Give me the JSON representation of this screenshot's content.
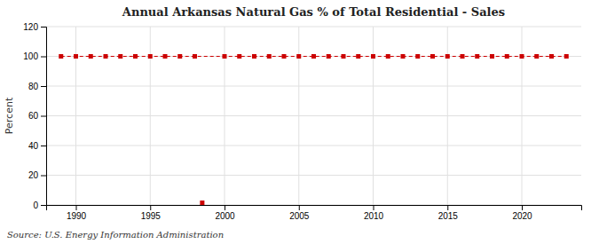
{
  "chart_data": {
    "type": "line",
    "title": "Annual Arkansas Natural Gas % of Total Residential - Sales",
    "ylabel": "Percent",
    "source": "Source: U.S. Energy Information Administration",
    "xlim": [
      1988,
      2024
    ],
    "xticks": [
      1990,
      1995,
      2000,
      2005,
      2010,
      2015,
      2020
    ],
    "ylim": [
      0,
      120
    ],
    "yticks": [
      0,
      20,
      40,
      60,
      80,
      100,
      120
    ],
    "grid": true,
    "series": [
      {
        "type": "line",
        "color": "#cc0000",
        "marker": "square",
        "line_style": "dashed",
        "x": [
          1989,
          1990,
          1991,
          1992,
          1993,
          1994,
          1995,
          1996,
          1997,
          1998,
          2000,
          2001,
          2002,
          2003,
          2004,
          2005,
          2006,
          2007,
          2008,
          2009,
          2010,
          2011,
          2012,
          2013,
          2014,
          2015,
          2016,
          2017,
          2018,
          2019,
          2020,
          2021,
          2022,
          2023
        ],
        "values": [
          100,
          100,
          100,
          100,
          100,
          100,
          100,
          100,
          100,
          100,
          100,
          100,
          100,
          100,
          100,
          100,
          100,
          100,
          100,
          100,
          100,
          100,
          100,
          100,
          100,
          100,
          100,
          100,
          100,
          100,
          100,
          100,
          100,
          100
        ]
      },
      {
        "type": "scatter",
        "color": "#cc0000",
        "marker": "square",
        "x": [
          1998.5
        ],
        "values": [
          1.5
        ]
      }
    ]
  }
}
